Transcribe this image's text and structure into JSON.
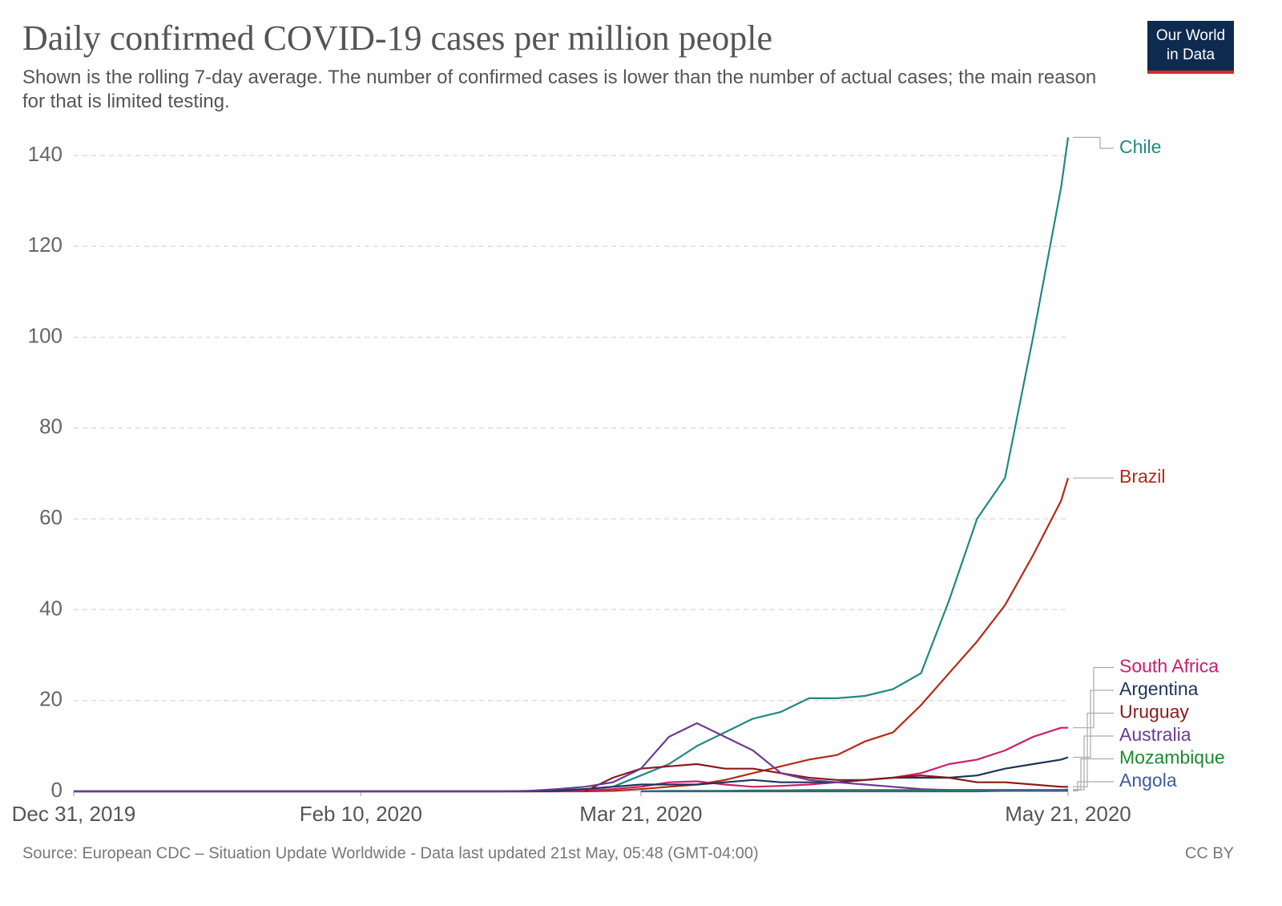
{
  "title": "Daily confirmed COVID-19 cases per million people",
  "subtitle": "Shown is the rolling 7-day average. The number of confirmed cases is lower than the number of actual cases; the main reason for that is limited testing.",
  "logo": [
    "Our World",
    "in Data"
  ],
  "source": "Source: European CDC – Situation Update Worldwide - Data last updated 21st May, 05:48 (GMT-04:00)",
  "license": "CC BY",
  "chart_data": {
    "type": "line",
    "x": [
      "2019-12-31",
      "2020-02-10",
      "2020-03-01",
      "2020-03-05",
      "2020-03-09",
      "2020-03-13",
      "2020-03-17",
      "2020-03-21",
      "2020-03-25",
      "2020-03-29",
      "2020-04-02",
      "2020-04-06",
      "2020-04-10",
      "2020-04-14",
      "2020-04-18",
      "2020-04-22",
      "2020-04-26",
      "2020-04-30",
      "2020-05-04",
      "2020-05-08",
      "2020-05-12",
      "2020-05-16",
      "2020-05-20",
      "2020-05-21"
    ],
    "xlim": [
      "2019-12-31",
      "2020-05-21"
    ],
    "xticks": [
      {
        "value": "2019-12-31",
        "label": "Dec 31, 2019"
      },
      {
        "value": "2020-02-10",
        "label": "Feb 10, 2020"
      },
      {
        "value": "2020-03-21",
        "label": "Mar 21, 2020"
      },
      {
        "value": "2020-05-21",
        "label": "May 21, 2020"
      }
    ],
    "ylim": [
      0,
      140
    ],
    "yticks": [
      0,
      20,
      40,
      60,
      80,
      100,
      120,
      140
    ],
    "grid": true,
    "series": [
      {
        "name": "Chile",
        "color": "#1f8a80",
        "values": [
          0,
          0,
          0,
          0.1,
          0.3,
          0.5,
          1,
          3.5,
          6,
          10,
          13,
          16,
          17.5,
          20.5,
          20.5,
          21,
          22.5,
          26,
          42,
          60,
          69,
          100,
          133,
          144
        ]
      },
      {
        "name": "Brazil",
        "color": "#b32b16",
        "values": [
          0,
          0,
          0,
          0,
          0,
          0,
          0.1,
          0.5,
          1,
          1.5,
          2.5,
          4,
          5.5,
          7,
          8,
          11,
          13,
          19,
          26,
          33,
          41,
          52,
          64,
          69
        ]
      },
      {
        "name": "South Africa",
        "color": "#d01c6b",
        "values": [
          0,
          0,
          0,
          0,
          0,
          0.2,
          0.5,
          1,
          2,
          2.2,
          1.5,
          1,
          1.2,
          1.5,
          2,
          2.5,
          3,
          4,
          6,
          7,
          9,
          12,
          14,
          14
        ]
      },
      {
        "name": "Argentina",
        "color": "#1d3557",
        "values": [
          0,
          0,
          0,
          0,
          0.1,
          0.5,
          1,
          1.5,
          1.5,
          1.5,
          2,
          2.5,
          2,
          2,
          2,
          2.5,
          3,
          3,
          3,
          3.5,
          5,
          6,
          7,
          7.5
        ]
      },
      {
        "name": "Uruguay",
        "color": "#8a1a1a",
        "values": [
          null,
          null,
          null,
          null,
          null,
          0,
          3,
          5,
          5.5,
          6,
          5,
          5,
          4,
          3,
          2.5,
          2.5,
          3,
          3.5,
          3,
          2,
          2,
          1.5,
          1,
          1
        ]
      },
      {
        "name": "Australia",
        "color": "#6b3a96",
        "values": [
          0,
          0,
          0,
          0.1,
          0.5,
          1,
          2,
          5,
          12,
          15,
          12,
          9,
          4,
          2.5,
          2,
          1.5,
          1,
          0.5,
          0.3,
          0.3,
          0.3,
          0.3,
          0.3,
          0.3
        ]
      },
      {
        "name": "Mozambique",
        "color": "#1a8a2e",
        "values": [
          null,
          null,
          null,
          null,
          null,
          null,
          null,
          0,
          0.1,
          0.1,
          0.1,
          0.2,
          0.2,
          0.3,
          0.3,
          0.3,
          0.3,
          0.3,
          0.3,
          0.3,
          0.3,
          0.3,
          0.3,
          0.4
        ]
      },
      {
        "name": "Angola",
        "color": "#3d5a9e",
        "values": [
          null,
          null,
          null,
          null,
          null,
          null,
          null,
          0,
          0,
          0,
          0,
          0,
          0,
          0,
          0,
          0,
          0,
          0,
          0,
          0,
          0.1,
          0.1,
          0.1,
          0.1
        ]
      }
    ]
  }
}
